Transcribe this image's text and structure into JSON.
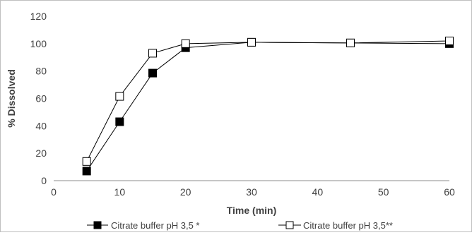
{
  "chart_data": {
    "type": "line",
    "title": "",
    "xlabel": "Time (min)",
    "ylabel": "% Dissolved",
    "xlim": [
      0,
      60
    ],
    "ylim": [
      0,
      120
    ],
    "xticks": [
      0,
      10,
      20,
      30,
      40,
      50,
      60
    ],
    "yticks": [
      0,
      20,
      40,
      60,
      80,
      100,
      120
    ],
    "grid": false,
    "legend_position": "bottom",
    "series": [
      {
        "name": "Citrate buffer pH 3,5 *",
        "marker": "filled-square",
        "color": "#000000",
        "x": [
          5,
          10,
          15,
          20,
          30,
          45,
          60
        ],
        "y": [
          7,
          43,
          78.5,
          97,
          101,
          100.5,
          100
        ]
      },
      {
        "name": "Citrate buffer pH 3,5**",
        "marker": "open-square",
        "color": "#000000",
        "x": [
          5,
          10,
          15,
          20,
          30,
          45,
          60
        ],
        "y": [
          14,
          61.5,
          93,
          100,
          101,
          100.5,
          102
        ]
      }
    ]
  }
}
